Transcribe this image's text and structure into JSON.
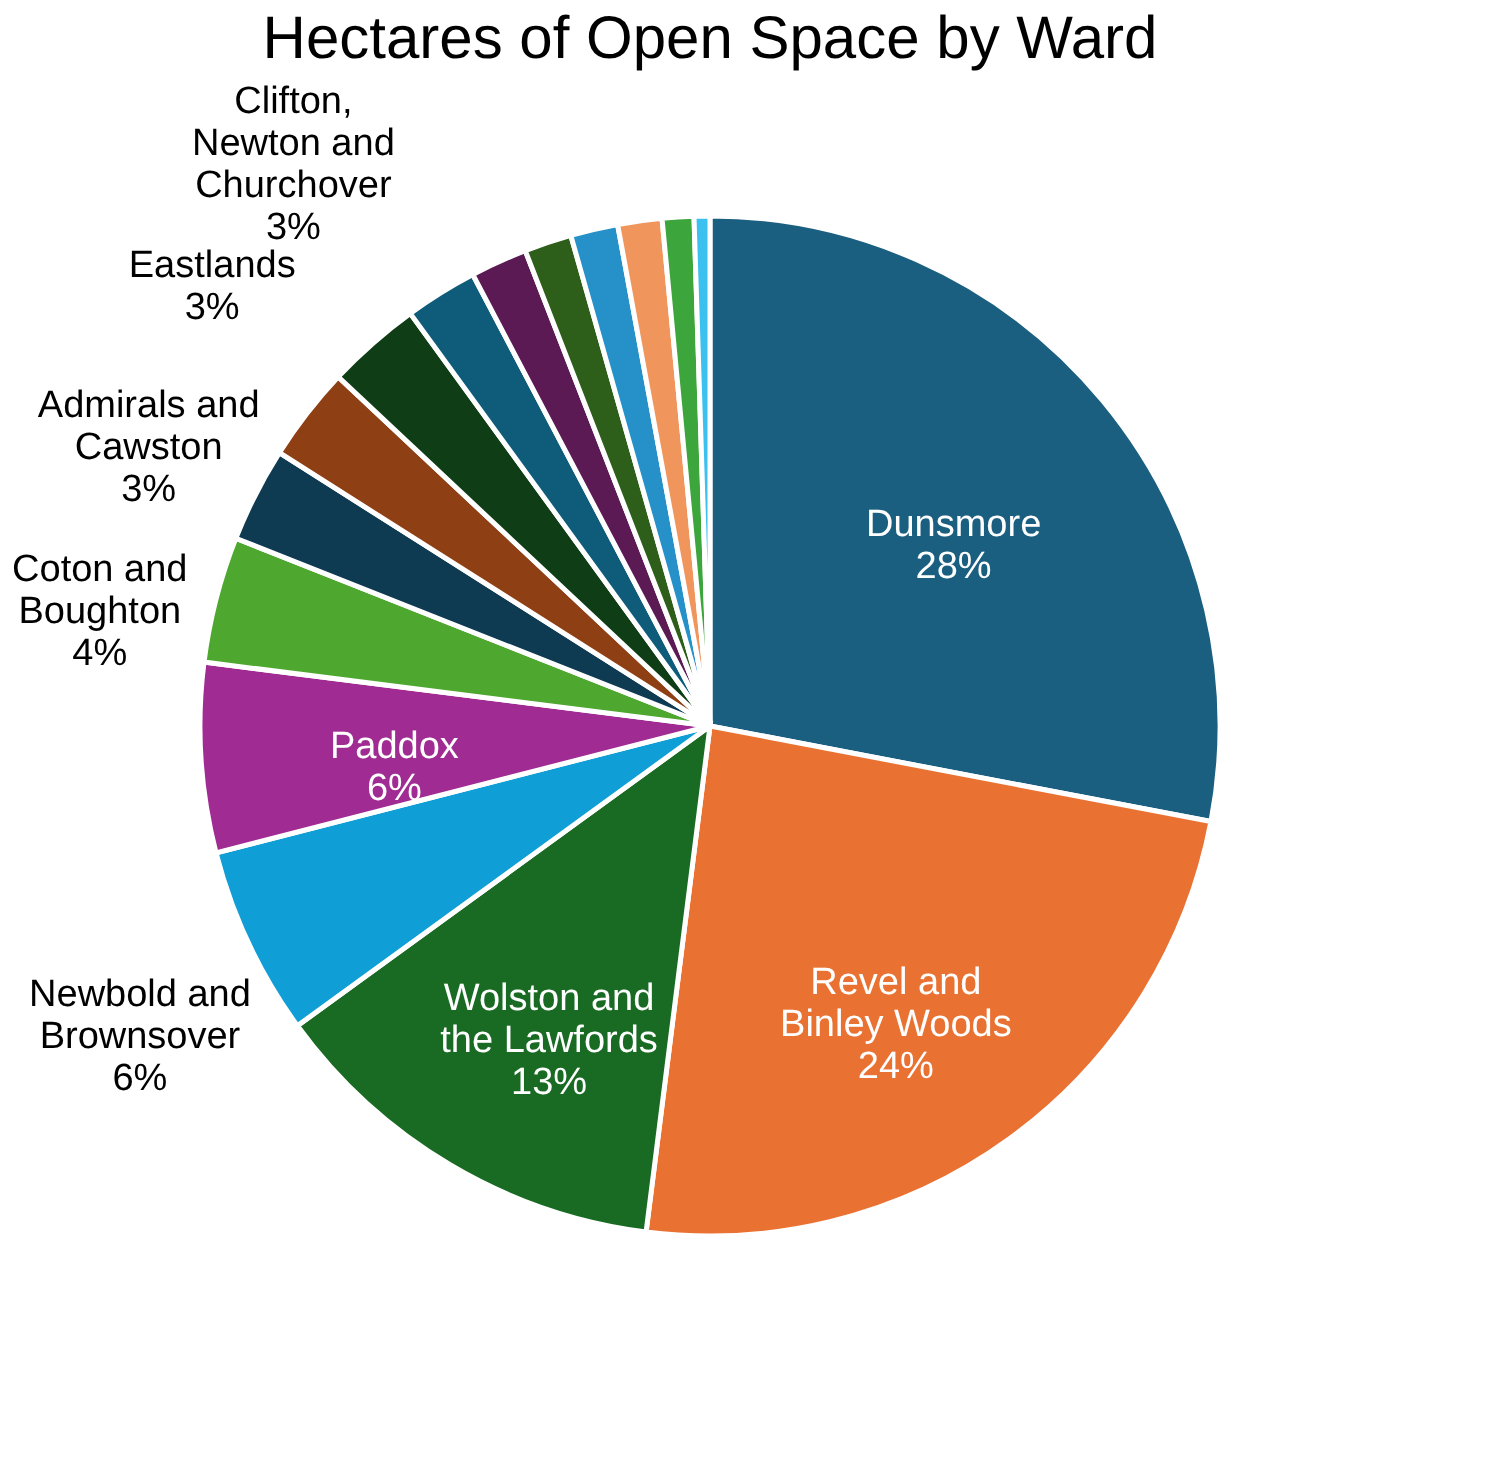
{
  "chart_data": {
    "type": "pie",
    "title": "Hectares of Open Space by Ward",
    "categories": [
      "Dunsmore",
      "Revel and Binley Woods",
      "Wolston and the Lawfords",
      "Newbold and Brownsover",
      "Paddox",
      "Coton and Boughton",
      "Admirals and Cawston",
      "Eastlands",
      "Clifton, Newton and Churchover",
      null,
      null,
      null,
      null,
      null,
      null,
      null
    ],
    "values": [
      28,
      24,
      13,
      6,
      6,
      4,
      3,
      3,
      3,
      2.3,
      1.8,
      1.5,
      1.5,
      1.4,
      1.0,
      0.5
    ],
    "value_labels": [
      "28%",
      "24%",
      "13%",
      "6%",
      "6%",
      "4%",
      "3%",
      "3%",
      "3%",
      null,
      null,
      null,
      null,
      null,
      null,
      null
    ],
    "colors": [
      "#1a5f80",
      "#e97132",
      "#196b24",
      "#0f9ed5",
      "#a02b93",
      "#4ea72e",
      "#0e3a52",
      "#8f3f14",
      "#0f3d15",
      "#0e5c7a",
      "#5c1a55",
      "#2d5f1a",
      "#2591c8",
      "#f0965d",
      "#3ca53c",
      "#3cc0f0"
    ],
    "legend": false
  }
}
